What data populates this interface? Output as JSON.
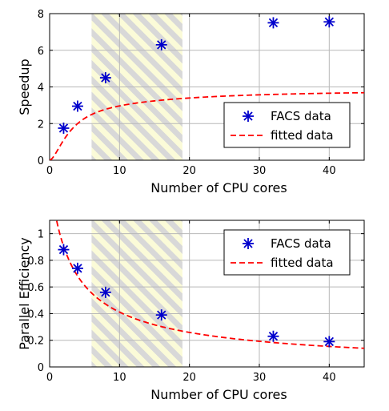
{
  "chart_data": [
    {
      "type": "scatter",
      "xlabel": "Number of CPU cores",
      "ylabel": "Speedup",
      "xlim": [
        0,
        45
      ],
      "ylim": [
        0,
        8
      ],
      "xticks": [
        "0",
        "10",
        "20",
        "30",
        "40"
      ],
      "yticks": [
        "0",
        "2",
        "4",
        "6",
        "8"
      ],
      "grid": true,
      "legend_position": "bottom-right",
      "shaded_band": {
        "x_from": 6,
        "x_to": 19,
        "pattern": "yellow-gray diagonal stripes"
      },
      "series": [
        {
          "name": "FACS data",
          "marker": "asterisk",
          "color": "#0000cc",
          "x": [
            2,
            4,
            8,
            16,
            32,
            40
          ],
          "y": [
            1.75,
            2.95,
            4.5,
            6.3,
            7.5,
            7.55
          ]
        },
        {
          "name": "fitted data",
          "style": "dashed",
          "color": "#ff0000",
          "curve": "x / (1 + 0.29*(x - 1)) * (1 - exp(-(x + 0.07)*0.57)) * (1 + 0.13*(1 - exp(-x/12)))",
          "x_range": [
            0,
            45
          ]
        }
      ]
    },
    {
      "type": "scatter",
      "xlabel": "Number of CPU cores",
      "ylabel": "Parallel Efficiency",
      "xlim": [
        0,
        45
      ],
      "ylim": [
        0,
        1.1
      ],
      "xticks": [
        "0",
        "10",
        "20",
        "30",
        "40"
      ],
      "yticks": [
        "0",
        "0.2",
        "0.4",
        "0.6",
        "0.8",
        "1"
      ],
      "grid": true,
      "legend_position": "top-right",
      "shaded_band": {
        "x_from": 6,
        "x_to": 19,
        "pattern": "yellow-gray diagonal stripes"
      },
      "series": [
        {
          "name": "FACS data",
          "marker": "asterisk",
          "color": "#0000cc",
          "x": [
            2,
            4,
            8,
            16,
            32,
            40
          ],
          "y": [
            0.88,
            0.74,
            0.56,
            0.39,
            0.23,
            0.19
          ]
        },
        {
          "name": "fitted data",
          "style": "dashed",
          "color": "#ff0000",
          "curve": "1 / (1 + 0.29*(x - 1)) ^ 0.75 * (1.1 - 0.1*x/45)",
          "x_range": [
            0,
            45
          ]
        }
      ]
    }
  ]
}
